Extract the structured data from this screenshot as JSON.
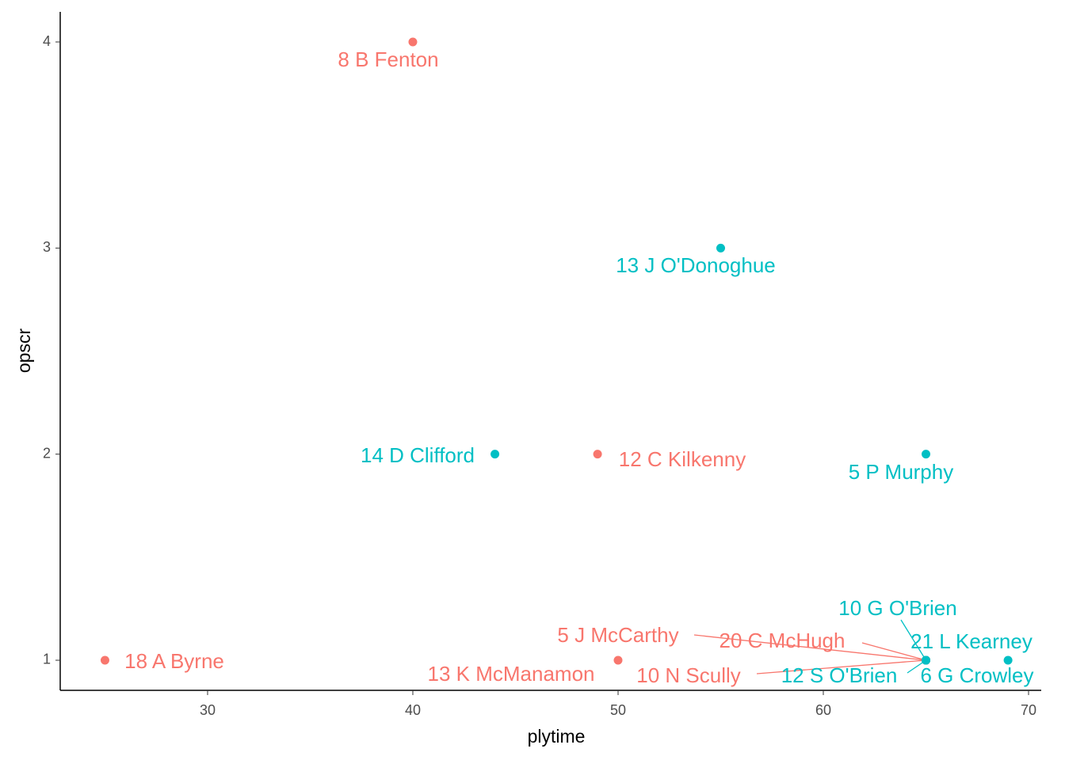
{
  "chart_data": {
    "type": "scatter",
    "x_label": "plytime",
    "y_label": "opscr",
    "xlim": [
      22.82,
      70.54
    ],
    "xticks": [
      30,
      40,
      50,
      60,
      70
    ],
    "ylim": [
      0.854,
      4.146
    ],
    "yticks": [
      1,
      2,
      3,
      4
    ],
    "series": [
      {
        "color": "#F8766D",
        "x": [
          40,
          49,
          25,
          50,
          65,
          65,
          65
        ],
        "values": [
          4,
          2,
          1,
          1,
          1,
          1,
          1
        ],
        "labels": [
          "8  B Fenton",
          "12  C Kilkenny",
          "18  A Byrne",
          "13  K McManamon",
          "5  J McCarthy",
          "20  C McHugh",
          "10  N Scully"
        ]
      },
      {
        "color": "#00BFC4",
        "x": [
          55,
          44,
          65,
          65,
          69,
          65,
          65
        ],
        "values": [
          3,
          2,
          2,
          1,
          1,
          1,
          1
        ],
        "labels": [
          "13  J O'Donoghue",
          "14  D Clifford",
          "5  P Murphy",
          "10  G O'Brien",
          "21  L Kearney",
          "12  S O'Brien",
          "6  G Crowley"
        ]
      }
    ]
  }
}
